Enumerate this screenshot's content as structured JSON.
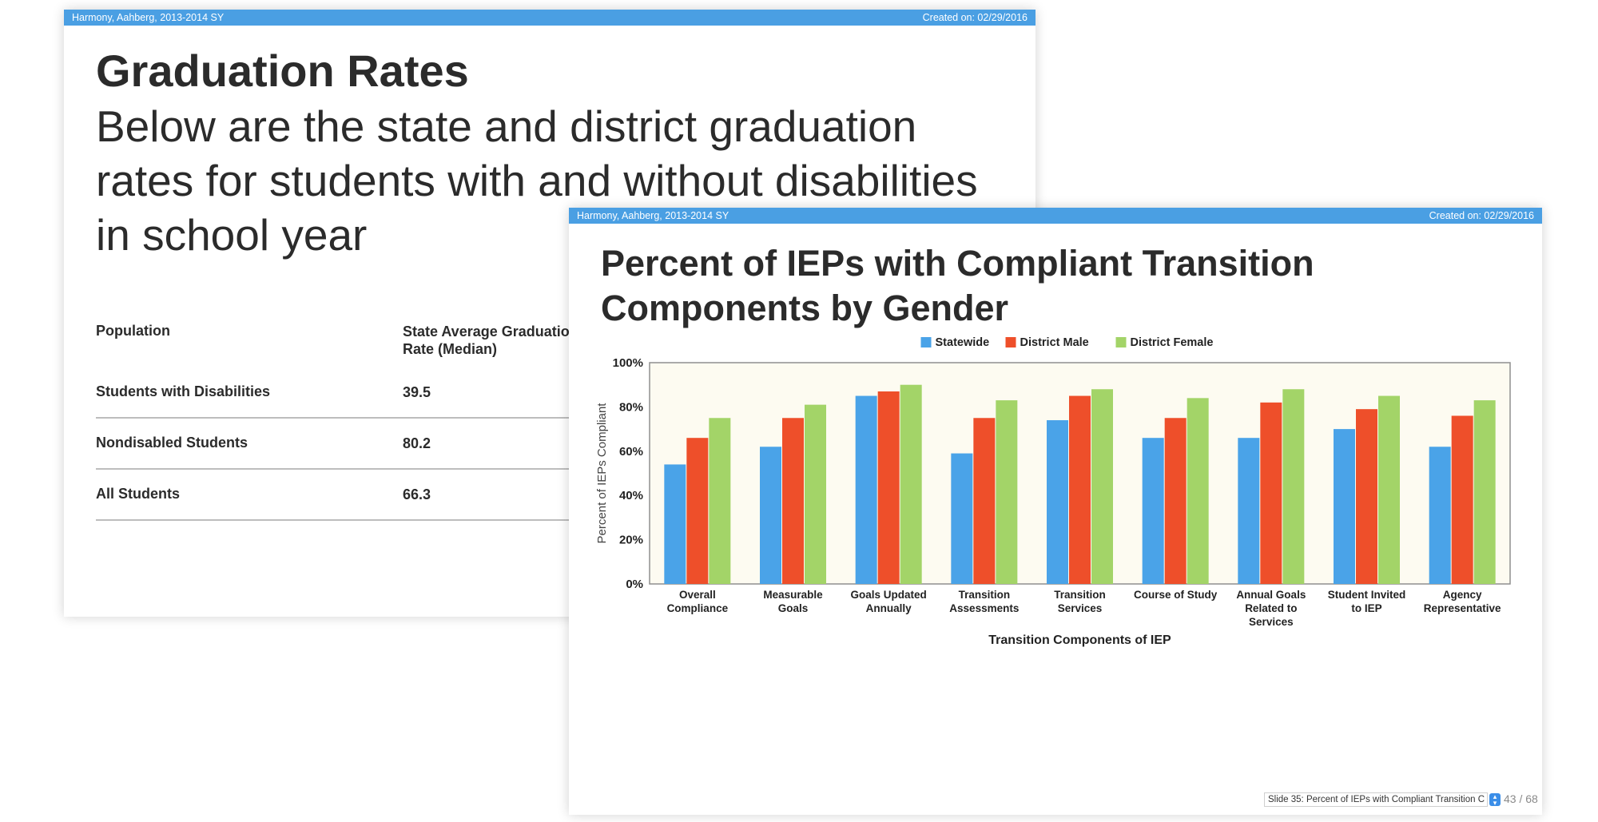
{
  "back_slide": {
    "header_left": "Harmony, Aahberg, 2013-2014 SY",
    "header_right": "Created on: 02/29/2016",
    "title": "Graduation Rates",
    "subtitle": "Below are the state and district graduation rates for students with and without disabilities in school year",
    "table": {
      "col1_header": "Population",
      "col2_header": "State Average Graduation Rate (Median)",
      "rows": [
        {
          "population": "Students with Disabilities",
          "state_avg": "39.5"
        },
        {
          "population": "Nondisabled Students",
          "state_avg": "80.2"
        },
        {
          "population": "All Students",
          "state_avg": "66.3"
        }
      ]
    }
  },
  "front_slide": {
    "header_left": "Harmony, Aahberg, 2013-2014 SY",
    "header_right": "Created on: 02/29/2016",
    "title": "Percent of IEPs with Compliant Transition Components by Gender",
    "footer_text": "Slide 35: Percent of IEPs with Compliant Transition C",
    "page_indicator": "43 / 68"
  },
  "chart_data": {
    "type": "bar",
    "title": "",
    "xlabel": "Transition Components of IEP",
    "ylabel": "Percent of IEPs Compliant",
    "ylim": [
      0,
      100
    ],
    "yticks": [
      "0%",
      "20%",
      "40%",
      "60%",
      "80%",
      "100%"
    ],
    "legend_position": "top-center",
    "plot_background": "#fdfbf1",
    "categories": [
      [
        "Overall",
        "Compliance"
      ],
      [
        "Measurable",
        "Goals"
      ],
      [
        "Goals Updated",
        "Annually"
      ],
      [
        "Transition",
        "Assessments"
      ],
      [
        "Transition",
        "Services"
      ],
      [
        "Course of Study"
      ],
      [
        "Annual Goals",
        "Related to",
        "Services"
      ],
      [
        "Student Invited",
        "to IEP"
      ],
      [
        "Agency",
        "Representative"
      ]
    ],
    "series": [
      {
        "name": "Statewide",
        "color": "#4aa3e8",
        "values": [
          54,
          62,
          85,
          59,
          74,
          66,
          66,
          70,
          62
        ]
      },
      {
        "name": "District Male",
        "color": "#ee4f2a",
        "values": [
          66,
          75,
          87,
          75,
          85,
          75,
          82,
          79,
          76
        ]
      },
      {
        "name": "District Female",
        "color": "#a3d468",
        "values": [
          75,
          81,
          90,
          83,
          88,
          84,
          88,
          85,
          83
        ]
      }
    ]
  }
}
